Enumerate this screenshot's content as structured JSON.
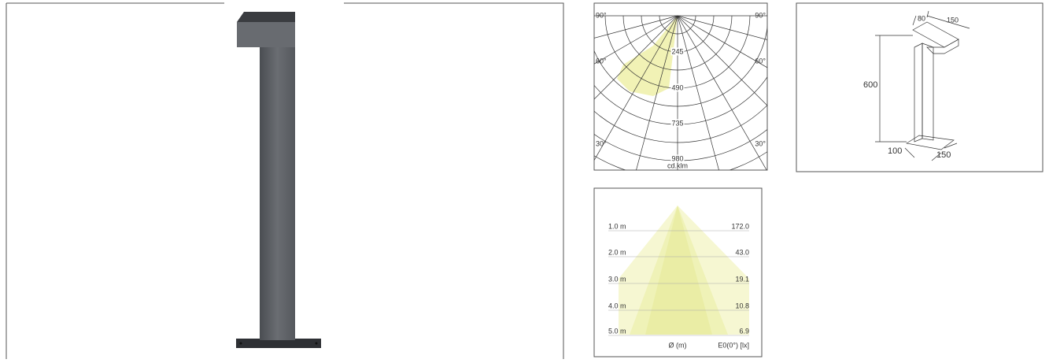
{
  "polar": {
    "angle_labels": [
      "90°",
      "90°",
      "60°",
      "60°",
      "30°",
      "30°"
    ],
    "ring_labels": [
      "245",
      "490",
      "735",
      "980"
    ],
    "unit": "cd.klm"
  },
  "dimensions": {
    "labels": [
      "80",
      "150",
      "600",
      "100",
      "150"
    ]
  },
  "illuminance": {
    "rows": [
      {
        "distance": "1.0 m",
        "lux": "172.0"
      },
      {
        "distance": "2.0 m",
        "lux": "43.0"
      },
      {
        "distance": "3.0 m",
        "lux": "19.1"
      },
      {
        "distance": "4.0 m",
        "lux": "10.8"
      },
      {
        "distance": "5.0 m",
        "lux": "6.9"
      }
    ],
    "footer": [
      "Ø (m)",
      "E0(0°) [lx]"
    ]
  }
}
